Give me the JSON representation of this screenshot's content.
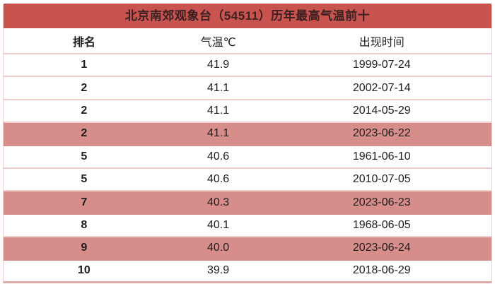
{
  "title": "北京南郊观象台（54511）历年最高气温前十",
  "colors": {
    "header_bg": "#c9534f",
    "highlight_bg": "#d78d89",
    "divider": "#f0cecb",
    "bottom_border": "#dfa9a5",
    "title_text": "#3a2020",
    "cell_text": "#1e1e1e"
  },
  "table": {
    "columns": [
      "排名",
      "气温℃",
      "出现时间"
    ],
    "rows": [
      {
        "rank": "1",
        "temp": "41.9",
        "date": "1999-07-24",
        "highlight": false
      },
      {
        "rank": "2",
        "temp": "41.1",
        "date": "2002-07-14",
        "highlight": false
      },
      {
        "rank": "2",
        "temp": "41.1",
        "date": "2014-05-29",
        "highlight": false
      },
      {
        "rank": "2",
        "temp": "41.1",
        "date": "2023-06-22",
        "highlight": true
      },
      {
        "rank": "5",
        "temp": "40.6",
        "date": "1961-06-10",
        "highlight": false
      },
      {
        "rank": "5",
        "temp": "40.6",
        "date": "2010-07-05",
        "highlight": false
      },
      {
        "rank": "7",
        "temp": "40.3",
        "date": "2023-06-23",
        "highlight": true
      },
      {
        "rank": "8",
        "temp": "40.1",
        "date": "1968-06-05",
        "highlight": false
      },
      {
        "rank": "9",
        "temp": "40.0",
        "date": "2023-06-24",
        "highlight": true
      },
      {
        "rank": "10",
        "temp": "39.9",
        "date": "2018-06-29",
        "highlight": false
      }
    ]
  },
  "chart_data": {
    "type": "table",
    "title": "北京南郊观象台（54511）历年最高气温前十",
    "columns": [
      "排名",
      "气温℃",
      "出现时间"
    ],
    "rows": [
      [
        "1",
        "41.9",
        "1999-07-24"
      ],
      [
        "2",
        "41.1",
        "2002-07-14"
      ],
      [
        "2",
        "41.1",
        "2014-05-29"
      ],
      [
        "2",
        "41.1",
        "2023-06-22"
      ],
      [
        "5",
        "40.6",
        "1961-06-10"
      ],
      [
        "5",
        "40.6",
        "2010-07-05"
      ],
      [
        "7",
        "40.3",
        "2023-06-23"
      ],
      [
        "8",
        "40.1",
        "1968-06-05"
      ],
      [
        "9",
        "40.0",
        "2023-06-24"
      ],
      [
        "10",
        "39.9",
        "2018-06-29"
      ]
    ],
    "highlighted_rows": [
      3,
      6,
      8
    ],
    "highlight_meaning_color": "#d78d89"
  }
}
